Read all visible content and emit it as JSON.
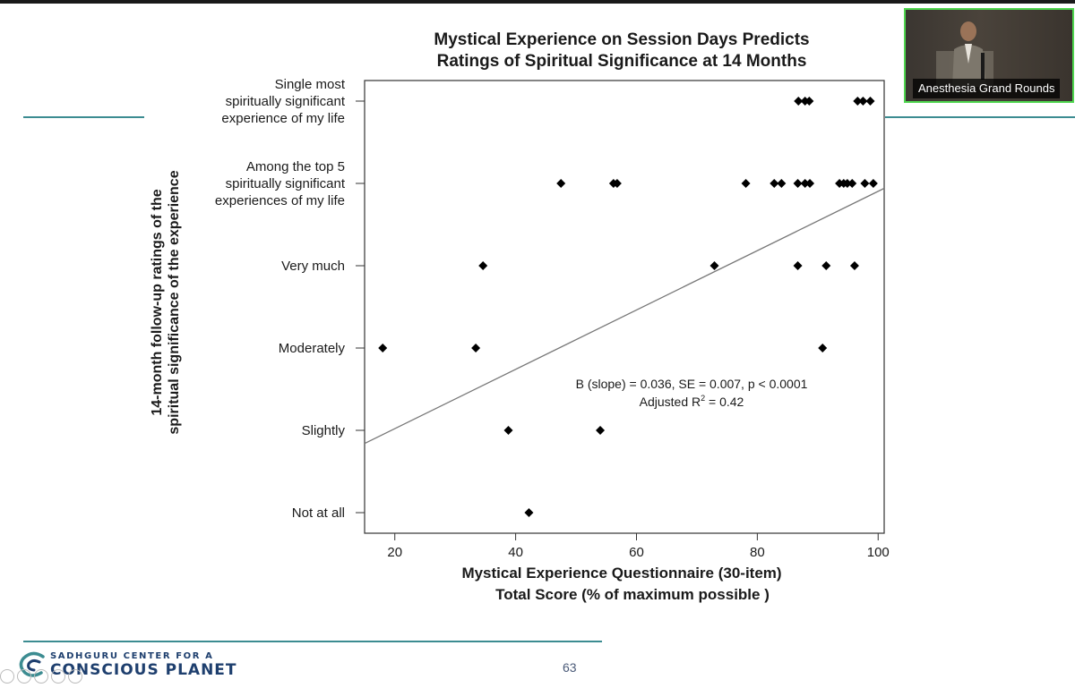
{
  "slide": {
    "page_number": "63",
    "logo_line1": "SADHGURU CENTER FOR A",
    "logo_line2": "CONSCIOUS PLANET",
    "accent_color": "#3c8c91"
  },
  "video": {
    "caption": "Anesthesia Grand Rounds",
    "border_color": "#4fd64f"
  },
  "chart_data": {
    "type": "scatter",
    "title_line1": "Mystical Experience on Session Days Predicts",
    "title_line2": "Ratings of Spiritual Significance at 14 Months",
    "xlabel_line1": "Mystical Experience Questionnaire (30-item)",
    "xlabel_line2": "Total Score (% of maximum possible )",
    "ylabel_line1": "14-month follow-up ratings of the",
    "ylabel_line2": "spiritual significance of the experience",
    "xlim": [
      15,
      101
    ],
    "ylim": [
      -0.25,
      5.25
    ],
    "x_ticks": [
      20,
      40,
      60,
      80,
      100
    ],
    "y_categories": [
      {
        "lines": [
          "Not at all"
        ]
      },
      {
        "lines": [
          "Slightly"
        ]
      },
      {
        "lines": [
          "Moderately"
        ]
      },
      {
        "lines": [
          "Very much"
        ]
      },
      {
        "lines": [
          "Among the top 5",
          "spiritually significant",
          "experiences of my life"
        ]
      },
      {
        "lines": [
          "Single most",
          "spiritually significant",
          "experience of my life"
        ]
      }
    ],
    "points": [
      {
        "x": 42.2,
        "y": 0
      },
      {
        "x": 38.8,
        "y": 1
      },
      {
        "x": 54.0,
        "y": 1
      },
      {
        "x": 18.0,
        "y": 2
      },
      {
        "x": 33.4,
        "y": 2
      },
      {
        "x": 90.8,
        "y": 2
      },
      {
        "x": 34.6,
        "y": 3
      },
      {
        "x": 72.9,
        "y": 3
      },
      {
        "x": 86.7,
        "y": 3
      },
      {
        "x": 91.4,
        "y": 3
      },
      {
        "x": 96.1,
        "y": 3
      },
      {
        "x": 47.5,
        "y": 4
      },
      {
        "x": 56.2,
        "y": 4
      },
      {
        "x": 56.8,
        "y": 4
      },
      {
        "x": 78.1,
        "y": 4
      },
      {
        "x": 82.8,
        "y": 4
      },
      {
        "x": 84.0,
        "y": 4
      },
      {
        "x": 86.7,
        "y": 4
      },
      {
        "x": 87.9,
        "y": 4
      },
      {
        "x": 88.7,
        "y": 4
      },
      {
        "x": 93.6,
        "y": 4
      },
      {
        "x": 94.3,
        "y": 4
      },
      {
        "x": 94.9,
        "y": 4
      },
      {
        "x": 95.7,
        "y": 4
      },
      {
        "x": 97.8,
        "y": 4
      },
      {
        "x": 99.2,
        "y": 4
      },
      {
        "x": 86.8,
        "y": 5
      },
      {
        "x": 87.9,
        "y": 5
      },
      {
        "x": 88.6,
        "y": 5
      },
      {
        "x": 96.6,
        "y": 5
      },
      {
        "x": 97.5,
        "y": 5
      },
      {
        "x": 98.7,
        "y": 5
      }
    ],
    "regression_line": {
      "x": [
        15,
        101
      ],
      "y": [
        0.84,
        3.94
      ]
    },
    "annotation_line1": "B (slope) = 0.036, SE = 0.007, p < 0.0001",
    "annotation_line2_prefix": "Adjusted R",
    "annotation_line2_sup": "2",
    "annotation_line2_suffix": " = 0.42",
    "grid": false,
    "marker": "diamond",
    "colors": {
      "marker": "#000000",
      "line": "#777777",
      "axis": "#333333"
    }
  }
}
